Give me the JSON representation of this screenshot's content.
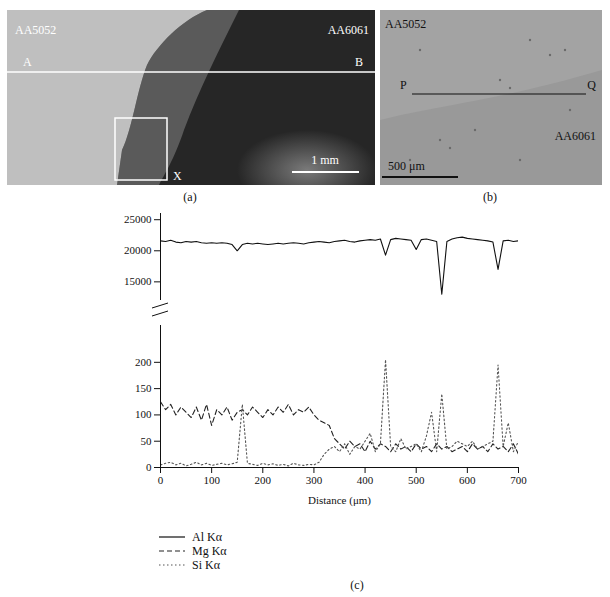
{
  "figure": {
    "panels": [
      {
        "caption": "(a)",
        "labels": [
          "AA5052",
          "AA6061"
        ],
        "line_ends": [
          "A",
          "B"
        ],
        "box_label": "X",
        "scale_bar": "1 mm"
      },
      {
        "caption": "(b)",
        "labels": [
          "AA5052",
          "AA6061"
        ],
        "line_ends": [
          "P",
          "Q"
        ],
        "scale_bar": "500 μm"
      }
    ],
    "chart_caption": "(c)"
  },
  "chart_data": [
    {
      "type": "line",
      "tick_labels": "y",
      "x": [
        0,
        10,
        20,
        30,
        40,
        50,
        60,
        70,
        80,
        90,
        100,
        110,
        120,
        130,
        140,
        150,
        160,
        170,
        180,
        190,
        200,
        210,
        220,
        230,
        240,
        250,
        260,
        270,
        280,
        290,
        300,
        310,
        320,
        330,
        340,
        350,
        360,
        370,
        380,
        390,
        400,
        410,
        420,
        430,
        440,
        450,
        460,
        470,
        480,
        490,
        500,
        510,
        520,
        530,
        540,
        550,
        560,
        570,
        580,
        590,
        600,
        610,
        620,
        630,
        640,
        650,
        660,
        670,
        680,
        690,
        700
      ],
      "xlim": [
        0,
        700
      ],
      "ylim": [
        12000,
        26000
      ],
      "yticks": [
        15000,
        20000,
        25000
      ],
      "series": [
        {
          "name": "Al Kα",
          "color": "#111111",
          "line_style": "solid",
          "values": [
            21600,
            21500,
            21700,
            21400,
            21300,
            21500,
            21400,
            21500,
            21300,
            21200,
            21300,
            21200,
            21300,
            21200,
            21000,
            20000,
            21000,
            21200,
            21100,
            21200,
            21100,
            21000,
            21100,
            21200,
            21100,
            21200,
            21300,
            21200,
            21100,
            21300,
            21400,
            21500,
            21400,
            21300,
            21500,
            21600,
            21700,
            21500,
            21400,
            21600,
            21700,
            21800,
            21700,
            21900,
            19300,
            21800,
            22000,
            21900,
            21800,
            21700,
            20200,
            21800,
            21900,
            21700,
            21500,
            13000,
            21500,
            21900,
            22100,
            22200,
            22000,
            21900,
            21800,
            21700,
            21600,
            21400,
            17000,
            21600,
            21700,
            21500,
            21600
          ]
        }
      ]
    },
    {
      "type": "line",
      "xlabel": "Distance (μm)",
      "legend": "bottom",
      "x": [
        0,
        10,
        20,
        30,
        40,
        50,
        60,
        70,
        80,
        90,
        100,
        110,
        120,
        130,
        140,
        150,
        160,
        170,
        180,
        190,
        200,
        210,
        220,
        230,
        240,
        250,
        260,
        270,
        280,
        290,
        300,
        310,
        320,
        330,
        340,
        350,
        360,
        370,
        380,
        390,
        400,
        410,
        420,
        430,
        440,
        450,
        460,
        470,
        480,
        490,
        500,
        510,
        520,
        530,
        540,
        550,
        560,
        570,
        580,
        590,
        600,
        610,
        620,
        630,
        640,
        650,
        660,
        670,
        680,
        690,
        700
      ],
      "xlim": [
        0,
        700
      ],
      "xticks": [
        0,
        100,
        200,
        300,
        400,
        500,
        600,
        700
      ],
      "ylim": [
        0,
        270
      ],
      "yticks": [
        0,
        50,
        100,
        150,
        200
      ],
      "series": [
        {
          "name": "Mg Kα",
          "color": "#222222",
          "line_style": "dashed",
          "values": [
            125,
            110,
            120,
            100,
            115,
            105,
            95,
            115,
            90,
            120,
            80,
            110,
            100,
            115,
            90,
            105,
            110,
            100,
            115,
            105,
            95,
            110,
            100,
            115,
            105,
            120,
            100,
            110,
            105,
            115,
            100,
            90,
            85,
            80,
            55,
            45,
            35,
            50,
            40,
            45,
            30,
            50,
            35,
            45,
            40,
            30,
            45,
            35,
            40,
            30,
            45,
            35,
            40,
            30,
            45,
            35,
            40,
            30,
            35,
            40,
            30,
            45,
            35,
            40,
            30,
            45,
            35,
            40,
            30,
            45,
            25
          ]
        },
        {
          "name": "Si Kα",
          "color": "#555555",
          "line_style": "dotted",
          "values": [
            5,
            8,
            10,
            5,
            8,
            3,
            6,
            10,
            5,
            8,
            4,
            6,
            8,
            5,
            7,
            10,
            120,
            8,
            6,
            4,
            8,
            5,
            7,
            4,
            6,
            3,
            8,
            5,
            4,
            6,
            5,
            10,
            25,
            35,
            40,
            30,
            45,
            25,
            40,
            35,
            50,
            65,
            30,
            45,
            205,
            40,
            30,
            55,
            35,
            40,
            45,
            30,
            60,
            105,
            30,
            140,
            35,
            40,
            50,
            45,
            40,
            50,
            35,
            40,
            45,
            50,
            195,
            40,
            85,
            30,
            50
          ]
        }
      ]
    }
  ]
}
